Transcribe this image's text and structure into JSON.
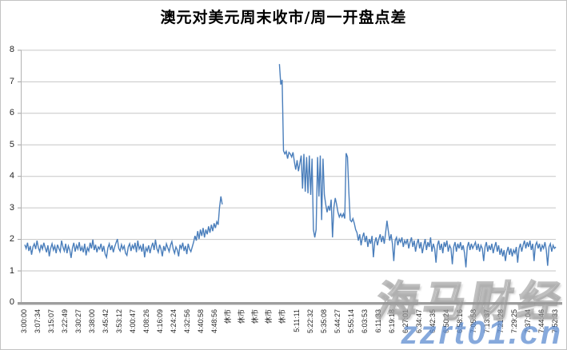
{
  "title": "澳元对美元周末收市/周一开盘点差",
  "watermarks": {
    "brand": "海马财经",
    "site": "zzrt01.cn"
  },
  "colors": {
    "line": "#4a7ebb",
    "grid": "#c6c6c6",
    "axis": "#9e9e9e",
    "tick_text": "#262626",
    "title_text": "#000000"
  },
  "chart_data": {
    "type": "line",
    "title": "澳元对美元周末收市/周一开盘点差",
    "xlabel": "",
    "ylabel": "",
    "ylim": [
      0,
      8
    ],
    "yticks": [
      0,
      1,
      2,
      3,
      4,
      5,
      6,
      7,
      8
    ],
    "grid": true,
    "legend": "none",
    "categories": [
      "3:00:00",
      "3:07:34",
      "3:15:07",
      "3:22:49",
      "3:30:27",
      "3:38:00",
      "3:45:42",
      "3:53:12",
      "4:00:47",
      "4:08:26",
      "4:16:09",
      "4:24:24",
      "4:32:56",
      "4:40:58",
      "4:48:56",
      "休市",
      "休市",
      "休市",
      "休市",
      "休市",
      "5:11:11",
      "5:22:32",
      "5:35:08",
      "5:44:27",
      "5:55:14",
      "6:03:53",
      "6:11:33",
      "6:19:18",
      "6:27:01",
      "6:34:47",
      "6:42:35",
      "6:50:24",
      "6:58:16",
      "7:05:58",
      "7:13:37",
      "7:21:28",
      "7:29:25",
      "7:37:04",
      "7:44:46",
      "7:52:33"
    ],
    "label_every": 10,
    "values": [
      1.82,
      1.7,
      1.88,
      1.62,
      1.78,
      1.5,
      1.75,
      1.85,
      1.68,
      1.95,
      1.72,
      1.6,
      1.82,
      1.68,
      1.88,
      1.72,
      1.58,
      1.8,
      1.45,
      1.7,
      1.85,
      1.65,
      1.78,
      1.55,
      1.82,
      1.7,
      1.6,
      1.95,
      1.75,
      1.62,
      1.85,
      1.55,
      1.78,
      1.65,
      1.4,
      1.72,
      1.88,
      1.6,
      1.8,
      1.68,
      1.9,
      1.62,
      1.75,
      1.58,
      1.85,
      1.48,
      1.72,
      1.62,
      1.88,
      1.7,
      1.98,
      1.65,
      1.82,
      1.58,
      1.75,
      1.68,
      1.85,
      1.6,
      1.78,
      1.52,
      1.42,
      1.72,
      1.85,
      1.65,
      1.8,
      1.58,
      1.75,
      1.88,
      2.0,
      1.7,
      1.62,
      1.82,
      1.68,
      1.78,
      1.55,
      1.48,
      1.75,
      1.85,
      1.62,
      1.8,
      1.7,
      1.88,
      1.58,
      1.95,
      1.68,
      1.78,
      1.6,
      1.85,
      1.42,
      1.72,
      1.62,
      1.8,
      1.55,
      1.75,
      1.88,
      1.65,
      1.98,
      1.7,
      1.58,
      1.82,
      1.68,
      1.45,
      1.78,
      1.62,
      1.85,
      1.72,
      1.6,
      1.8,
      1.92,
      1.68,
      1.55,
      1.75,
      1.65,
      1.45,
      1.82,
      1.7,
      1.88,
      1.62,
      1.78,
      1.52,
      1.85,
      1.68,
      1.6,
      1.75,
      1.9,
      2.1,
      1.95,
      2.25,
      2.0,
      2.3,
      2.1,
      2.35,
      2.05,
      2.3,
      2.15,
      2.4,
      2.2,
      2.45,
      2.25,
      2.5,
      2.35,
      2.55,
      2.45,
      3.0,
      3.35,
      3.1,
      null,
      null,
      null,
      null,
      null,
      null,
      null,
      null,
      null,
      null,
      null,
      null,
      null,
      null,
      null,
      null,
      null,
      null,
      null,
      null,
      null,
      null,
      null,
      null,
      null,
      null,
      null,
      null,
      null,
      null,
      null,
      null,
      null,
      null,
      null,
      null,
      null,
      null,
      null,
      null,
      null,
      7.55,
      6.9,
      7.05,
      4.8,
      4.7,
      4.78,
      4.55,
      4.75,
      4.7,
      4.6,
      4.75,
      4.45,
      4.2,
      4.5,
      4.15,
      4.4,
      4.65,
      3.6,
      4.7,
      3.5,
      4.6,
      3.45,
      4.65,
      3.4,
      4.55,
      2.3,
      2.05,
      2.3,
      4.6,
      3.35,
      4.65,
      2.6,
      4.55,
      3.4,
      3.1,
      2.85,
      3.05,
      2.9,
      3.25,
      2.05,
      3.0,
      3.3,
      3.1,
      2.85,
      2.7,
      2.8,
      2.7,
      2.8,
      2.65,
      4.72,
      4.6,
      3.5,
      2.6,
      2.55,
      2.65,
      2.5,
      2.3,
      2.2,
      1.95,
      2.15,
      1.8,
      2.05,
      2.2,
      1.9,
      2.1,
      1.75,
      2.0,
      1.85,
      2.1,
      1.42,
      1.9,
      2.05,
      1.8,
      2.0,
      2.15,
      1.9,
      2.1,
      1.85,
      2.2,
      2.58,
      2.25,
      1.95,
      2.15,
      1.85,
      1.3,
      1.95,
      2.05,
      1.8,
      2.0,
      1.9,
      2.05,
      1.75,
      1.95,
      1.85,
      2.0,
      1.7,
      1.9,
      2.05,
      1.75,
      1.95,
      1.6,
      1.85,
      2.0,
      1.7,
      1.9,
      1.55,
      1.8,
      2.0,
      1.65,
      1.9,
      1.75,
      2.05,
      1.6,
      1.85,
      1.7,
      1.25,
      1.8,
      1.95,
      1.65,
      1.85,
      1.55,
      1.9,
      1.75,
      1.95,
      1.6,
      1.8,
      1.7,
      1.2,
      1.75,
      1.9,
      1.6,
      1.85,
      1.7,
      1.9,
      1.65,
      1.8,
      1.55,
      1.1,
      1.75,
      1.9,
      1.65,
      1.85,
      1.7,
      1.8,
      1.9,
      1.65,
      1.85,
      1.6,
      1.8,
      1.7,
      1.3,
      1.75,
      1.9,
      1.6,
      1.8,
      1.65,
      1.85,
      1.55,
      1.75,
      1.9,
      1.6,
      1.8,
      1.5,
      1.7,
      1.45,
      1.65,
      1.3,
      1.6,
      1.75,
      1.5,
      1.7,
      1.45,
      1.65,
      1.55,
      1.75,
      1.25,
      1.7,
      1.85,
      1.6,
      1.8,
      1.95,
      1.7,
      1.9,
      1.75,
      1.95,
      1.65,
      1.85,
      1.3,
      1.8,
      1.9,
      1.7,
      1.85,
      1.6,
      1.8,
      1.7,
      1.9,
      1.65,
      1.15,
      1.75,
      1.85,
      1.6,
      1.8,
      1.7,
      1.75
    ]
  }
}
